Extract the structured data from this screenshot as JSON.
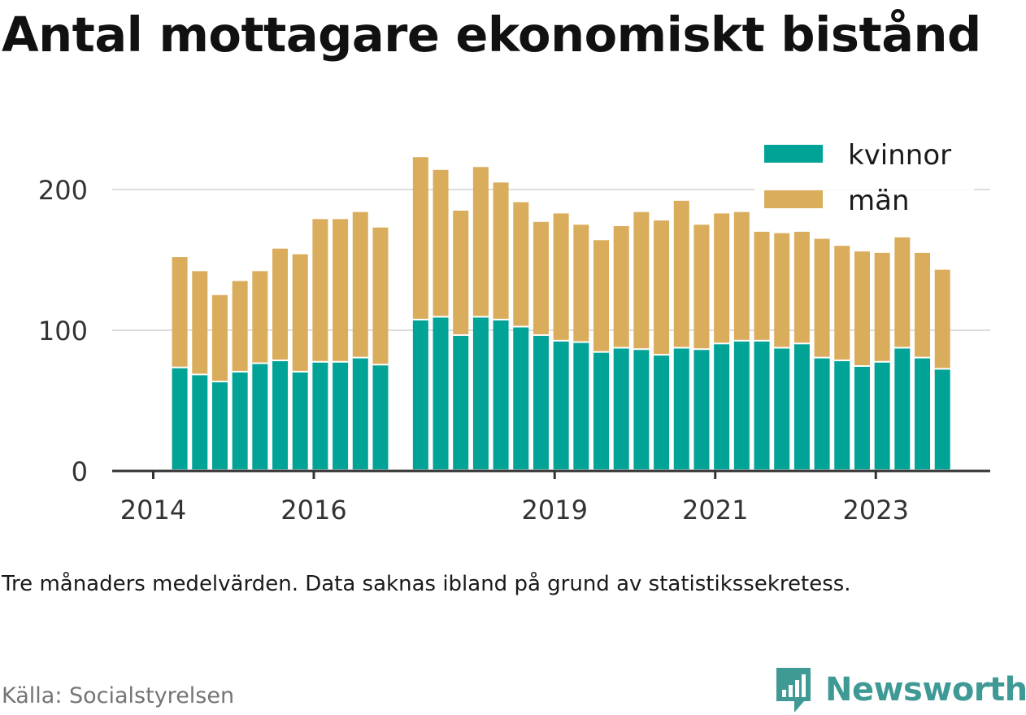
{
  "title": "Antal mottagare ekonomiskt bistånd",
  "note": "Tre månaders medelvärden. Data saknas ibland på grund av statistikssekretess.",
  "source": "Källa: Socialstyrelsen",
  "brand": {
    "name": "Newsworthy",
    "icon": "bar-chart-speech-bubble-icon",
    "color": "#3f9a95"
  },
  "chart_data": {
    "type": "bar",
    "stacked": true,
    "ylim": [
      0,
      230
    ],
    "yticks": [
      0,
      100,
      200
    ],
    "xticks": [
      {
        "label": "2014",
        "x": 2014.0
      },
      {
        "label": "2016",
        "x": 2016.0
      },
      {
        "label": "2019",
        "x": 2019.0
      },
      {
        "label": "2021",
        "x": 2021.0
      },
      {
        "label": "2023",
        "x": 2023.0
      }
    ],
    "grid": true,
    "legend_position": "top-right",
    "x": [
      2014.33,
      2014.58,
      2014.83,
      2015.08,
      2015.33,
      2015.58,
      2015.83,
      2016.08,
      2016.33,
      2016.58,
      2016.83,
      2017.33,
      2017.58,
      2017.83,
      2018.08,
      2018.33,
      2018.58,
      2018.83,
      2019.08,
      2019.33,
      2019.58,
      2019.83,
      2020.08,
      2020.33,
      2020.58,
      2020.83,
      2021.08,
      2021.33,
      2021.58,
      2021.83,
      2022.08,
      2022.33,
      2022.58,
      2022.83,
      2023.08,
      2023.33,
      2023.58,
      2023.83
    ],
    "series": [
      {
        "name": "kvinnor",
        "color": "#00a396",
        "values": [
          73,
          68,
          63,
          70,
          76,
          78,
          70,
          77,
          77,
          80,
          75,
          107,
          109,
          96,
          109,
          107,
          102,
          96,
          92,
          91,
          84,
          87,
          86,
          82,
          87,
          86,
          90,
          92,
          92,
          87,
          90,
          80,
          78,
          74,
          77,
          87,
          80,
          72
        ]
      },
      {
        "name": "män",
        "color": "#daad5c",
        "values": [
          79,
          74,
          62,
          65,
          66,
          80,
          84,
          102,
          102,
          104,
          98,
          116,
          105,
          89,
          107,
          98,
          89,
          81,
          91,
          84,
          80,
          87,
          98,
          96,
          105,
          89,
          93,
          92,
          78,
          82,
          80,
          85,
          82,
          82,
          78,
          79,
          75,
          71
        ]
      }
    ]
  }
}
